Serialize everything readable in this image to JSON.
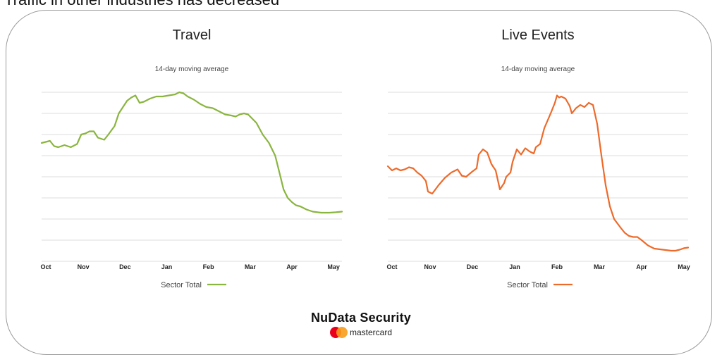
{
  "page": {
    "heading": "Traffic in other industries has decreased"
  },
  "brand": {
    "name": "NuData Security",
    "sub": "mastercard",
    "logo_icon": "mastercard-logo-icon"
  },
  "chart_data": [
    {
      "type": "line",
      "title": "Travel",
      "subtitle": "14-day moving average",
      "x_ticks": [
        "Oct",
        "Nov",
        "Dec",
        "Jan",
        "Feb",
        "Mar",
        "Apr",
        "May"
      ],
      "xlim": [
        0,
        7.2
      ],
      "ylim": [
        0,
        8
      ],
      "grid": true,
      "legend": "bottom-center",
      "series": [
        {
          "name": "Sector Total",
          "color": "#8ab53f",
          "points": [
            [
              0,
              5.6
            ],
            [
              0.1,
              5.65
            ],
            [
              0.2,
              5.7
            ],
            [
              0.3,
              5.45
            ],
            [
              0.4,
              5.4
            ],
            [
              0.55,
              5.5
            ],
            [
              0.7,
              5.4
            ],
            [
              0.85,
              5.55
            ],
            [
              0.95,
              6.0
            ],
            [
              1.05,
              6.05
            ],
            [
              1.15,
              6.15
            ],
            [
              1.25,
              6.15
            ],
            [
              1.35,
              5.85
            ],
            [
              1.5,
              5.75
            ],
            [
              1.6,
              6.0
            ],
            [
              1.75,
              6.4
            ],
            [
              1.85,
              7.0
            ],
            [
              1.95,
              7.3
            ],
            [
              2.05,
              7.6
            ],
            [
              2.15,
              7.75
            ],
            [
              2.25,
              7.85
            ],
            [
              2.35,
              7.5
            ],
            [
              2.45,
              7.55
            ],
            [
              2.6,
              7.7
            ],
            [
              2.75,
              7.8
            ],
            [
              2.9,
              7.8
            ],
            [
              3.05,
              7.85
            ],
            [
              3.2,
              7.9
            ],
            [
              3.3,
              8.0
            ],
            [
              3.4,
              7.95
            ],
            [
              3.5,
              7.8
            ],
            [
              3.65,
              7.65
            ],
            [
              3.8,
              7.45
            ],
            [
              3.95,
              7.3
            ],
            [
              4.1,
              7.25
            ],
            [
              4.25,
              7.1
            ],
            [
              4.4,
              6.95
            ],
            [
              4.55,
              6.9
            ],
            [
              4.65,
              6.85
            ],
            [
              4.75,
              6.95
            ],
            [
              4.85,
              7.0
            ],
            [
              4.95,
              6.95
            ],
            [
              5.05,
              6.75
            ],
            [
              5.15,
              6.55
            ],
            [
              5.3,
              6.0
            ],
            [
              5.45,
              5.6
            ],
            [
              5.6,
              5.0
            ],
            [
              5.7,
              4.2
            ],
            [
              5.8,
              3.4
            ],
            [
              5.9,
              3.0
            ],
            [
              6.0,
              2.8
            ],
            [
              6.1,
              2.65
            ],
            [
              6.2,
              2.6
            ],
            [
              6.35,
              2.45
            ],
            [
              6.5,
              2.35
            ],
            [
              6.7,
              2.3
            ],
            [
              6.9,
              2.3
            ],
            [
              7.05,
              2.32
            ],
            [
              7.2,
              2.35
            ]
          ]
        }
      ]
    },
    {
      "type": "line",
      "title": "Live Events",
      "subtitle": "14-day moving average",
      "x_ticks": [
        "Oct",
        "Nov",
        "Dec",
        "Jan",
        "Feb",
        "Mar",
        "Apr",
        "May"
      ],
      "xlim": [
        0,
        7.1
      ],
      "ylim": [
        0,
        8
      ],
      "grid": true,
      "legend": "bottom-center",
      "series": [
        {
          "name": "Sector Total",
          "color": "#ee6a2a",
          "points": [
            [
              0,
              4.5
            ],
            [
              0.1,
              4.3
            ],
            [
              0.2,
              4.4
            ],
            [
              0.3,
              4.3
            ],
            [
              0.4,
              4.35
            ],
            [
              0.5,
              4.45
            ],
            [
              0.6,
              4.4
            ],
            [
              0.7,
              4.2
            ],
            [
              0.8,
              4.05
            ],
            [
              0.9,
              3.8
            ],
            [
              0.95,
              3.3
            ],
            [
              1.05,
              3.2
            ],
            [
              1.2,
              3.6
            ],
            [
              1.35,
              3.95
            ],
            [
              1.5,
              4.2
            ],
            [
              1.65,
              4.35
            ],
            [
              1.75,
              4.05
            ],
            [
              1.85,
              4.0
            ],
            [
              2.0,
              4.25
            ],
            [
              2.1,
              4.4
            ],
            [
              2.15,
              5.05
            ],
            [
              2.25,
              5.3
            ],
            [
              2.35,
              5.15
            ],
            [
              2.45,
              4.6
            ],
            [
              2.55,
              4.3
            ],
            [
              2.65,
              3.4
            ],
            [
              2.75,
              3.7
            ],
            [
              2.8,
              4.0
            ],
            [
              2.9,
              4.2
            ],
            [
              2.95,
              4.7
            ],
            [
              3.05,
              5.3
            ],
            [
              3.15,
              5.05
            ],
            [
              3.25,
              5.35
            ],
            [
              3.35,
              5.2
            ],
            [
              3.45,
              5.1
            ],
            [
              3.5,
              5.4
            ],
            [
              3.6,
              5.55
            ],
            [
              3.7,
              6.3
            ],
            [
              3.85,
              7.0
            ],
            [
              3.95,
              7.5
            ],
            [
              4.0,
              7.85
            ],
            [
              4.05,
              7.75
            ],
            [
              4.1,
              7.8
            ],
            [
              4.2,
              7.7
            ],
            [
              4.3,
              7.35
            ],
            [
              4.35,
              7.0
            ],
            [
              4.45,
              7.25
            ],
            [
              4.55,
              7.4
            ],
            [
              4.65,
              7.3
            ],
            [
              4.75,
              7.5
            ],
            [
              4.85,
              7.4
            ],
            [
              4.95,
              6.5
            ],
            [
              5.05,
              5.0
            ],
            [
              5.15,
              3.6
            ],
            [
              5.25,
              2.6
            ],
            [
              5.35,
              2.0
            ],
            [
              5.5,
              1.6
            ],
            [
              5.6,
              1.35
            ],
            [
              5.7,
              1.2
            ],
            [
              5.8,
              1.15
            ],
            [
              5.9,
              1.15
            ],
            [
              6.0,
              1.0
            ],
            [
              6.15,
              0.75
            ],
            [
              6.3,
              0.6
            ],
            [
              6.5,
              0.55
            ],
            [
              6.7,
              0.5
            ],
            [
              6.8,
              0.5
            ],
            [
              6.9,
              0.55
            ],
            [
              7.0,
              0.62
            ],
            [
              7.1,
              0.65
            ]
          ]
        }
      ]
    }
  ]
}
